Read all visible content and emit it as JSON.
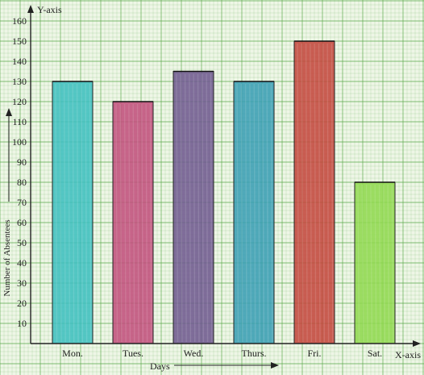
{
  "chart_data": {
    "type": "bar",
    "categories": [
      "Mon.",
      "Tues.",
      "Wed.",
      "Thurs.",
      "Fri.",
      "Sat."
    ],
    "values": [
      130,
      120,
      135,
      130,
      150,
      80
    ],
    "bar_colors": [
      "#3fbfbf",
      "#c2507c",
      "#6f5a8f",
      "#3a9eb4",
      "#c4483d",
      "#8fd84f"
    ],
    "yticks": [
      10,
      20,
      30,
      40,
      50,
      60,
      70,
      80,
      90,
      100,
      110,
      120,
      130,
      140,
      150,
      160
    ],
    "ylim": [
      0,
      165
    ],
    "ylabel": "Number of Absentees",
    "xlabel": "Days",
    "y_axis_name": "Y-axis",
    "x_axis_name": "X-axis",
    "grid": true,
    "grid_color": "#5aa84a",
    "background": "#eef6e6"
  }
}
